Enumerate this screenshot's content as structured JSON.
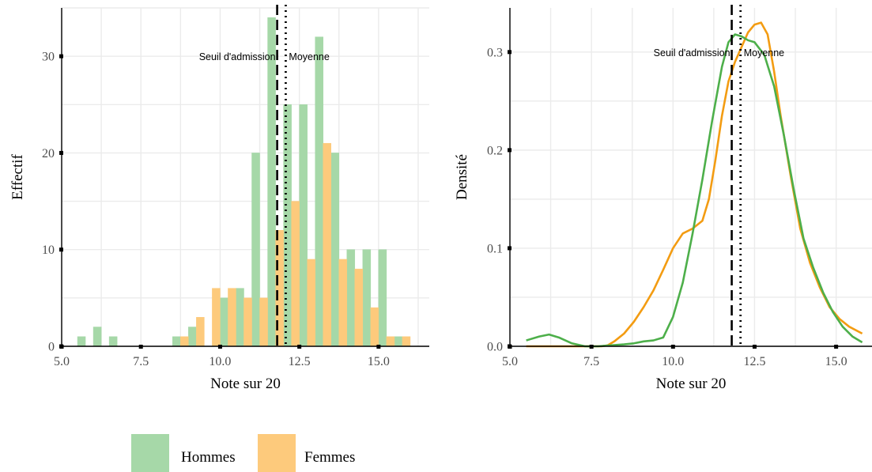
{
  "chart_data": [
    {
      "type": "bar",
      "subtype": "histogram",
      "xlabel": "Note sur 20",
      "ylabel": "Effectif",
      "xlim": [
        5.0,
        16.6
      ],
      "ylim": [
        0,
        35
      ],
      "xticks": [
        5.0,
        7.5,
        10.0,
        12.5,
        15.0
      ],
      "xtick_labels": [
        "5.0",
        "7.5",
        "10.0",
        "12.5",
        "15.0"
      ],
      "yticks": [
        0,
        10,
        20,
        30
      ],
      "ytick_labels": [
        "0",
        "10",
        "20",
        "30"
      ],
      "bin_width": 0.5,
      "bin_starts": [
        5.5,
        6.0,
        6.5,
        7.0,
        7.5,
        8.0,
        8.5,
        9.0,
        9.5,
        10.0,
        10.5,
        11.0,
        11.5,
        12.0,
        12.5,
        13.0,
        13.5,
        14.0,
        14.5,
        15.0,
        15.5
      ],
      "series": [
        {
          "name": "Hommes",
          "color": "#a6d8a8",
          "values": [
            1,
            2,
            1,
            0,
            0,
            0,
            1,
            2,
            0,
            5,
            6,
            20,
            34,
            25,
            25,
            32,
            20,
            10,
            10,
            10,
            1
          ]
        },
        {
          "name": "Femmes",
          "color": "#fdca7c",
          "values": [
            0,
            0,
            0,
            0,
            0,
            0,
            1,
            3,
            6,
            6,
            5,
            5,
            12,
            15,
            9,
            21,
            9,
            8,
            4,
            1,
            1
          ]
        }
      ],
      "vlines": [
        {
          "label": "Seuil d'admission",
          "x": 11.8,
          "style": "dashed"
        },
        {
          "label": "Moyenne",
          "x": 12.07,
          "style": "dotted"
        }
      ],
      "annotation_y": 30,
      "grid": true
    },
    {
      "type": "line",
      "subtype": "density",
      "xlabel": "Note sur 20",
      "ylabel": "Densité",
      "xlim": [
        5.0,
        16.1
      ],
      "ylim": [
        0,
        0.345
      ],
      "xticks": [
        5.0,
        7.5,
        10.0,
        12.5,
        15.0
      ],
      "xtick_labels": [
        "5.0",
        "7.5",
        "10.0",
        "12.5",
        "15.0"
      ],
      "yticks": [
        0.0,
        0.1,
        0.2,
        0.3
      ],
      "ytick_labels": [
        "0.0",
        "0.1",
        "0.2",
        "0.3"
      ],
      "series": [
        {
          "name": "Hommes",
          "color": "#4daf4a",
          "x": [
            5.5,
            5.9,
            6.2,
            6.5,
            6.9,
            7.3,
            7.7,
            8.1,
            8.5,
            8.8,
            9.1,
            9.4,
            9.7,
            10.0,
            10.3,
            10.6,
            10.9,
            11.2,
            11.5,
            11.7,
            11.9,
            12.1,
            12.3,
            12.5,
            12.8,
            13.1,
            13.4,
            13.7,
            14.0,
            14.3,
            14.6,
            14.9,
            15.2,
            15.5,
            15.8
          ],
          "values": [
            0.006,
            0.01,
            0.012,
            0.009,
            0.003,
            0.0,
            0.0,
            0.001,
            0.002,
            0.003,
            0.005,
            0.006,
            0.009,
            0.03,
            0.065,
            0.115,
            0.17,
            0.23,
            0.285,
            0.31,
            0.318,
            0.316,
            0.312,
            0.31,
            0.297,
            0.265,
            0.215,
            0.16,
            0.11,
            0.08,
            0.055,
            0.035,
            0.02,
            0.01,
            0.004
          ]
        },
        {
          "name": "Femmes",
          "color": "#f39c12",
          "x": [
            5.5,
            6.0,
            6.5,
            7.0,
            7.5,
            7.8,
            8.0,
            8.2,
            8.5,
            8.8,
            9.1,
            9.4,
            9.7,
            10.0,
            10.3,
            10.6,
            10.9,
            11.1,
            11.3,
            11.5,
            11.7,
            11.9,
            12.1,
            12.3,
            12.5,
            12.7,
            12.9,
            13.1,
            13.3,
            13.6,
            13.9,
            14.2,
            14.5,
            14.8,
            15.1,
            15.4,
            15.8
          ],
          "values": [
            0.0,
            0.0,
            0.0,
            0.0,
            0.0,
            0.0,
            0.001,
            0.005,
            0.013,
            0.025,
            0.04,
            0.057,
            0.078,
            0.1,
            0.115,
            0.12,
            0.128,
            0.15,
            0.19,
            0.235,
            0.27,
            0.29,
            0.305,
            0.32,
            0.328,
            0.33,
            0.318,
            0.28,
            0.235,
            0.175,
            0.12,
            0.085,
            0.06,
            0.04,
            0.028,
            0.02,
            0.013
          ]
        }
      ],
      "vlines": [
        {
          "label": "Seuil d'admission",
          "x": 11.8,
          "style": "dashed"
        },
        {
          "label": "Moyenne",
          "x": 12.07,
          "style": "dotted"
        }
      ],
      "annotation_y": 0.3,
      "grid": true
    }
  ],
  "legend": {
    "placement": "bottom",
    "items": [
      {
        "label": "Hommes",
        "color": "#a6d8a8"
      },
      {
        "label": "Femmes",
        "color": "#fdca7c"
      }
    ]
  }
}
